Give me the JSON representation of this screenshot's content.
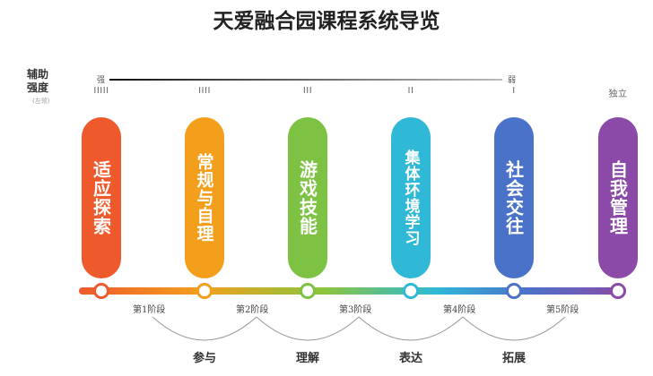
{
  "title": "天爱融合园课程系统导览",
  "intensity": {
    "axis_title_line1": "辅助",
    "axis_title_line2": "强度",
    "axis_note": "(左领)",
    "strong_label": "强",
    "weak_label": "弱",
    "ticks": [
      "IIIII",
      "IIII",
      "III",
      "II",
      "I",
      "独立"
    ]
  },
  "courses": [
    {
      "label": "适应探索",
      "color": "#ef5a2c"
    },
    {
      "label": "常规与自理",
      "color": "#f39f1c"
    },
    {
      "label": "游戏技能",
      "color": "#7dc242"
    },
    {
      "label": "集体环境学习",
      "color": "#2fb9d6"
    },
    {
      "label": "社会交往",
      "color": "#4a72c9"
    },
    {
      "label": "自我管理",
      "color": "#8b4aa7"
    }
  ],
  "stages": [
    "第1阶段",
    "第2阶段",
    "第3阶段",
    "第4阶段",
    "第5阶段"
  ],
  "phases": [
    "参与",
    "理解",
    "表达",
    "拓展"
  ]
}
